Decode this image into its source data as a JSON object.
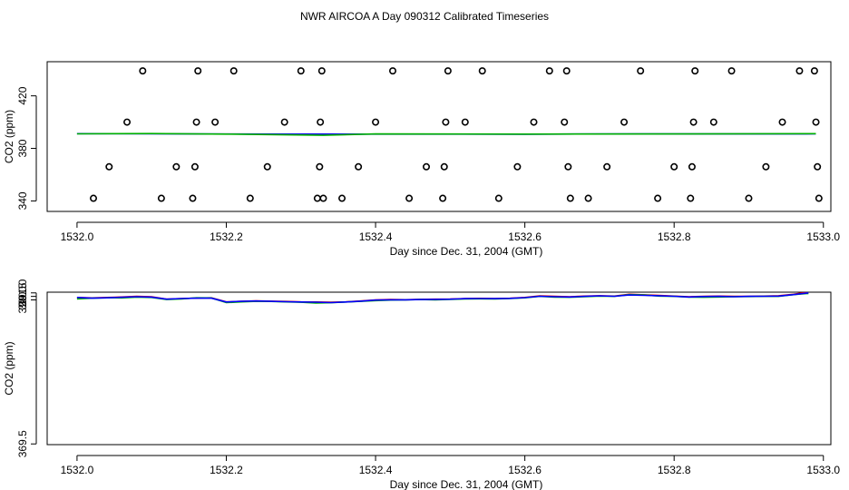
{
  "chart_data": [
    {
      "type": "scatter",
      "title": "NWR AIRCOA A  Day 090312  Calibrated Timeseries",
      "xlabel": "Day since Dec. 31, 2004 (GMT)",
      "ylabel": "CO2 (ppm)",
      "xlim": [
        1531.96,
        1533.01
      ],
      "ylim": [
        332,
        446
      ],
      "x_ticks": [
        1532.0,
        1532.2,
        1532.4,
        1532.6,
        1532.8,
        1533.0
      ],
      "x_tick_labels": [
        "1532.0",
        "1532.2",
        "1532.4",
        "1532.6",
        "1532.8",
        "1533.0"
      ],
      "y_ticks": [
        340,
        380,
        420
      ],
      "y_tick_labels": [
        "340",
        "380",
        "420"
      ],
      "series": [
        {
          "name": "calibration points",
          "style": "points",
          "color": "#000000",
          "x": [
            1532.022,
            1532.043,
            1532.067,
            1532.088,
            1532.113,
            1532.133,
            1532.155,
            1532.158,
            1532.16,
            1532.162,
            1532.185,
            1532.21,
            1532.232,
            1532.255,
            1532.278,
            1532.3,
            1532.322,
            1532.325,
            1532.326,
            1532.328,
            1532.33,
            1532.355,
            1532.377,
            1532.4,
            1532.423,
            1532.445,
            1532.468,
            1532.49,
            1532.492,
            1532.494,
            1532.497,
            1532.52,
            1532.543,
            1532.565,
            1532.59,
            1532.612,
            1532.633,
            1532.653,
            1532.656,
            1532.658,
            1532.661,
            1532.685,
            1532.71,
            1532.733,
            1532.755,
            1532.778,
            1532.8,
            1532.822,
            1532.824,
            1532.826,
            1532.828,
            1532.853,
            1532.877,
            1532.9,
            1532.923,
            1532.945,
            1532.968,
            1532.988,
            1532.99,
            1532.992,
            1532.994
          ],
          "y": [
            342,
            366,
            400,
            439,
            342,
            366,
            342,
            366,
            400,
            439,
            400,
            439,
            342,
            366,
            400,
            439,
            342,
            366,
            400,
            439,
            342,
            342,
            366,
            400,
            439,
            342,
            366,
            342,
            366,
            400,
            439,
            400,
            439,
            342,
            366,
            400,
            439,
            400,
            439,
            366,
            342,
            342,
            366,
            400,
            439,
            342,
            366,
            342,
            366,
            400,
            439,
            400,
            439,
            342,
            366,
            400,
            439,
            439,
            400,
            366,
            342
          ]
        },
        {
          "name": "blue",
          "style": "line",
          "color": "#0000ff",
          "x": [
            1532.0,
            1532.3,
            1532.6,
            1532.75,
            1532.9,
            1532.99
          ],
          "y": [
            391.2,
            390.9,
            390.8,
            391.1,
            391.0,
            391.1
          ]
        },
        {
          "name": "green",
          "style": "line",
          "color": "#00b000",
          "x": [
            1532.0,
            1532.1,
            1532.2,
            1532.33,
            1532.4,
            1532.6,
            1532.99
          ],
          "y": [
            391.1,
            391.3,
            390.9,
            390.0,
            391.0,
            390.9,
            391.2
          ]
        }
      ]
    },
    {
      "type": "line",
      "xlabel": "Day since Dec. 31, 2004 (GMT)",
      "ylabel": "CO2 (ppm)",
      "xlim": [
        1531.96,
        1533.01
      ],
      "ylim": [
        369.4,
        391.1
      ],
      "x_ticks": [
        1532.0,
        1532.2,
        1532.4,
        1532.6,
        1532.8,
        1533.0
      ],
      "x_tick_labels": [
        "1532.0",
        "1532.2",
        "1532.4",
        "1532.6",
        "1532.8",
        "1533.0"
      ],
      "y_ticks": [
        369.5,
        390.0,
        390.5,
        391.0
      ],
      "y_tick_labels": [
        "369.5",
        "390.0",
        "390.5",
        "391.0"
      ],
      "x": [
        1532.0,
        1532.02,
        1532.04,
        1532.06,
        1532.08,
        1532.1,
        1532.12,
        1532.14,
        1532.16,
        1532.18,
        1532.2,
        1532.22,
        1532.24,
        1532.26,
        1532.28,
        1532.3,
        1532.32,
        1532.34,
        1532.36,
        1532.38,
        1532.4,
        1532.42,
        1532.44,
        1532.46,
        1532.48,
        1532.5,
        1532.52,
        1532.54,
        1532.56,
        1532.58,
        1532.6,
        1532.62,
        1532.64,
        1532.66,
        1532.68,
        1532.7,
        1532.72,
        1532.74,
        1532.76,
        1532.78,
        1532.8,
        1532.82,
        1532.84,
        1532.86,
        1532.88,
        1532.9,
        1532.92,
        1532.94,
        1532.96,
        1532.98
      ],
      "series": [
        {
          "name": "red",
          "color": "#e00000",
          "y": [
            390.35,
            390.28,
            390.35,
            390.42,
            390.5,
            390.45,
            390.1,
            390.2,
            390.25,
            390.3,
            389.72,
            389.8,
            389.86,
            389.82,
            389.78,
            389.72,
            389.7,
            389.66,
            389.72,
            389.85,
            390.0,
            390.05,
            390.03,
            390.08,
            390.1,
            390.12,
            390.2,
            390.22,
            390.2,
            390.24,
            390.35,
            390.58,
            390.5,
            390.45,
            390.55,
            390.6,
            390.55,
            390.8,
            390.72,
            390.65,
            390.55,
            390.45,
            390.52,
            390.55,
            390.5,
            390.5,
            390.55,
            390.6,
            390.8,
            391.12
          ]
        },
        {
          "name": "green",
          "color": "#00b000",
          "y": [
            390.15,
            390.25,
            390.3,
            390.28,
            390.4,
            390.35,
            390.05,
            390.15,
            390.3,
            390.28,
            389.62,
            389.72,
            389.8,
            389.78,
            389.72,
            389.66,
            389.55,
            389.6,
            389.7,
            389.8,
            389.9,
            389.98,
            390.0,
            390.05,
            390.02,
            390.08,
            390.15,
            390.16,
            390.14,
            390.2,
            390.3,
            390.5,
            390.4,
            390.38,
            390.45,
            390.55,
            390.5,
            390.75,
            390.7,
            390.55,
            390.5,
            390.4,
            390.38,
            390.42,
            390.45,
            390.48,
            390.5,
            390.5,
            390.75,
            390.92
          ]
        },
        {
          "name": "blue",
          "color": "#0000ff",
          "y": [
            390.35,
            390.25,
            390.3,
            390.38,
            390.45,
            390.4,
            390.1,
            390.2,
            390.25,
            390.25,
            389.7,
            389.8,
            389.85,
            389.8,
            389.75,
            389.7,
            389.68,
            389.62,
            389.7,
            389.82,
            389.98,
            390.02,
            390.02,
            390.06,
            390.08,
            390.1,
            390.18,
            390.2,
            390.18,
            390.22,
            390.32,
            390.52,
            390.45,
            390.42,
            390.5,
            390.58,
            390.52,
            390.7,
            390.65,
            390.6,
            390.52,
            390.42,
            390.48,
            390.5,
            390.46,
            390.5,
            390.52,
            390.55,
            390.75,
            391.0
          ]
        }
      ]
    }
  ]
}
